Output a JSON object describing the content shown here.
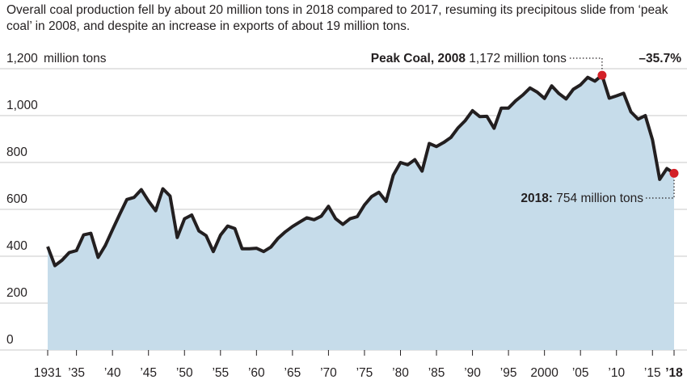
{
  "subtitle": "Overall coal production fell by about 20 million tons in 2018 compared to 2017, resuming its precipitous slide from ‘peak coal’ in 2008, and despite an increase in exports of about 19 million tons.",
  "colors": {
    "area": "#c6dcea",
    "line": "#231f20",
    "grid": "#c8c8c8",
    "marker": "#d32027"
  },
  "chart_data": {
    "type": "area",
    "ylabel": "million tons",
    "ylim": [
      0,
      1200
    ],
    "yticks": [
      {
        "value": 0,
        "label": "0"
      },
      {
        "value": 200,
        "label": "200"
      },
      {
        "value": 400,
        "label": "400"
      },
      {
        "value": 600,
        "label": "600"
      },
      {
        "value": 800,
        "label": "800"
      },
      {
        "value": 1000,
        "label": "1,000"
      },
      {
        "value": 1200,
        "label": "1,200"
      }
    ],
    "xlim": [
      1931,
      2018
    ],
    "xticks": [
      {
        "value": 1931,
        "label": "1931"
      },
      {
        "value": 1935,
        "label": "’35"
      },
      {
        "value": 1940,
        "label": "’40"
      },
      {
        "value": 1945,
        "label": "’45"
      },
      {
        "value": 1950,
        "label": "’50"
      },
      {
        "value": 1955,
        "label": "’55"
      },
      {
        "value": 1960,
        "label": "’60"
      },
      {
        "value": 1965,
        "label": "’65"
      },
      {
        "value": 1970,
        "label": "’70"
      },
      {
        "value": 1975,
        "label": "’75"
      },
      {
        "value": 1980,
        "label": "’80"
      },
      {
        "value": 1985,
        "label": "’85"
      },
      {
        "value": 1990,
        "label": "’90"
      },
      {
        "value": 1995,
        "label": "’95"
      },
      {
        "value": 2000,
        "label": "2000"
      },
      {
        "value": 2005,
        "label": "’05"
      },
      {
        "value": 2010,
        "label": "’10"
      },
      {
        "value": 2015,
        "label": "’15"
      },
      {
        "value": 2018,
        "label": "’18"
      }
    ],
    "x": [
      1931,
      1932,
      1933,
      1934,
      1935,
      1936,
      1937,
      1938,
      1939,
      1940,
      1941,
      1942,
      1943,
      1944,
      1945,
      1946,
      1947,
      1948,
      1949,
      1950,
      1951,
      1952,
      1953,
      1954,
      1955,
      1956,
      1957,
      1958,
      1959,
      1960,
      1961,
      1962,
      1963,
      1964,
      1965,
      1966,
      1967,
      1968,
      1969,
      1970,
      1971,
      1972,
      1973,
      1974,
      1975,
      1976,
      1977,
      1978,
      1979,
      1980,
      1981,
      1982,
      1983,
      1984,
      1985,
      1986,
      1987,
      1988,
      1989,
      1990,
      1991,
      1992,
      1993,
      1994,
      1995,
      1996,
      1997,
      1998,
      1999,
      2000,
      2001,
      2002,
      2003,
      2004,
      2005,
      2006,
      2007,
      2008,
      2009,
      2010,
      2011,
      2012,
      2013,
      2014,
      2015,
      2016,
      2017,
      2018
    ],
    "values": [
      441,
      360,
      383,
      416,
      424,
      491,
      498,
      395,
      446,
      513,
      579,
      642,
      651,
      684,
      636,
      594,
      688,
      657,
      480,
      560,
      576,
      508,
      488,
      420,
      490,
      529,
      518,
      432,
      432,
      434,
      420,
      439,
      477,
      504,
      527,
      546,
      564,
      556,
      571,
      613,
      560,
      536,
      560,
      569,
      619,
      655,
      673,
      634,
      746,
      800,
      790,
      812,
      763,
      881,
      868,
      885,
      907,
      948,
      979,
      1021,
      996,
      997,
      946,
      1032,
      1032,
      1063,
      1088,
      1118,
      1100,
      1073,
      1127,
      1094,
      1071,
      1112,
      1131,
      1163,
      1147,
      1172,
      1074,
      1084,
      1095,
      1016,
      985,
      1000,
      897,
      728,
      774,
      754
    ],
    "annotations": [
      {
        "id": "peak",
        "x": 2008,
        "y": 1172,
        "label_bold": "Peak Coal, 2008",
        "label": "1,172 million tons"
      },
      {
        "id": "latest",
        "x": 2018,
        "y": 754,
        "label_bold": "2018:",
        "label": "754 million tons"
      }
    ],
    "change_label": "–35.7%"
  }
}
